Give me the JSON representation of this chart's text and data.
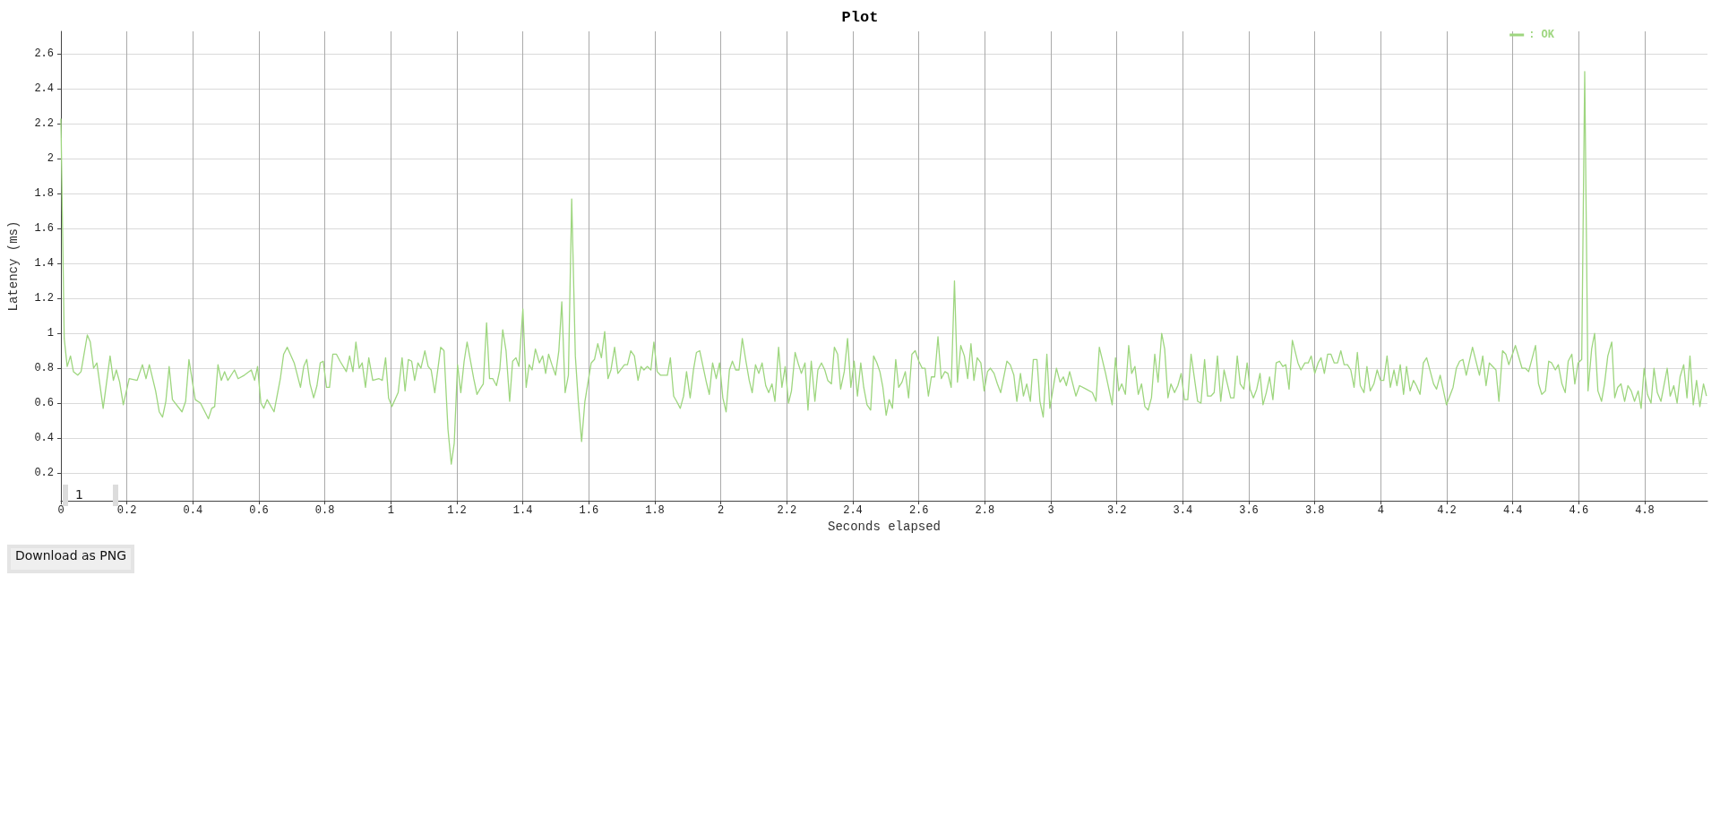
{
  "chart_data": {
    "type": "line",
    "title": "Plot",
    "xlabel": "Seconds elapsed",
    "ylabel": "Latency (ms)",
    "xlim": [
      0,
      4.99
    ],
    "ylim": [
      0.04,
      2.73
    ],
    "xticks": [
      0,
      0.2,
      0.4,
      0.6,
      0.8,
      1,
      1.2,
      1.4,
      1.6,
      1.8,
      2,
      2.2,
      2.4,
      2.6,
      2.8,
      3,
      3.2,
      3.4,
      3.6,
      3.8,
      4,
      4.2,
      4.4,
      4.6,
      4.8
    ],
    "yticks": [
      0.2,
      0.4,
      0.6,
      0.8,
      1,
      1.2,
      1.4,
      1.6,
      1.8,
      2,
      2.2,
      2.4,
      2.6
    ],
    "grid": true,
    "legend": "top right",
    "marker": "none",
    "line_style": "solid",
    "annotations": [
      "1",
      "Download as PNG"
    ],
    "series": [
      {
        "name": ": OK",
        "color": "#9ed67f",
        "x": [
          0,
          0.01,
          0.019,
          0.029,
          0.038,
          0.051,
          0.061,
          0.08,
          0.089,
          0.099,
          0.109,
          0.128,
          0.149,
          0.159,
          0.168,
          0.178,
          0.189,
          0.207,
          0.231,
          0.247,
          0.258,
          0.268,
          0.287,
          0.298,
          0.308,
          0.318,
          0.328,
          0.338,
          0.367,
          0.378,
          0.388,
          0.407,
          0.423,
          0.447,
          0.457,
          0.466,
          0.476,
          0.486,
          0.496,
          0.506,
          0.526,
          0.537,
          0.556,
          0.577,
          0.587,
          0.596,
          0.606,
          0.615,
          0.625,
          0.646,
          0.665,
          0.675,
          0.686,
          0.707,
          0.726,
          0.736,
          0.745,
          0.755,
          0.766,
          0.776,
          0.786,
          0.795,
          0.805,
          0.814,
          0.824,
          0.835,
          0.846,
          0.865,
          0.875,
          0.885,
          0.894,
          0.904,
          0.913,
          0.923,
          0.933,
          0.945,
          0.964,
          0.974,
          0.984,
          0.993,
          1.003,
          1.022,
          1.034,
          1.043,
          1.053,
          1.063,
          1.072,
          1.082,
          1.091,
          1.103,
          1.113,
          1.122,
          1.133,
          1.151,
          1.161,
          1.173,
          1.183,
          1.192,
          1.202,
          1.212,
          1.222,
          1.231,
          1.251,
          1.261,
          1.27,
          1.28,
          1.29,
          1.299,
          1.309,
          1.32,
          1.33,
          1.339,
          1.349,
          1.36,
          1.369,
          1.379,
          1.388,
          1.4,
          1.41,
          1.419,
          1.428,
          1.438,
          1.45,
          1.46,
          1.469,
          1.478,
          1.488,
          1.499,
          1.509,
          1.518,
          1.528,
          1.538,
          1.548,
          1.559,
          1.568,
          1.578,
          1.588,
          1.607,
          1.617,
          1.627,
          1.638,
          1.648,
          1.658,
          1.667,
          1.678,
          1.688,
          1.708,
          1.717,
          1.727,
          1.738,
          1.749,
          1.758,
          1.767,
          1.777,
          1.788,
          1.797,
          1.807,
          1.817,
          1.838,
          1.847,
          1.857,
          1.866,
          1.877,
          1.887,
          1.896,
          1.907,
          1.917,
          1.926,
          1.936,
          1.956,
          1.965,
          1.975,
          1.986,
          1.996,
          2.006,
          2.016,
          2.026,
          2.035,
          2.045,
          2.055,
          2.065,
          2.076,
          2.086,
          2.095,
          2.105,
          2.115,
          2.125,
          2.136,
          2.145,
          2.155,
          2.164,
          2.175,
          2.185,
          2.195,
          2.205,
          2.214,
          2.225,
          2.234,
          2.244,
          2.255,
          2.264,
          2.274,
          2.285,
          2.294,
          2.305,
          2.315,
          2.324,
          2.335,
          2.344,
          2.354,
          2.363,
          2.374,
          2.384,
          2.394,
          2.404,
          2.414,
          2.424,
          2.433,
          2.443,
          2.454,
          2.463,
          2.473,
          2.482,
          2.491,
          2.501,
          2.51,
          2.52,
          2.53,
          2.539,
          2.549,
          2.559,
          2.569,
          2.579,
          2.589,
          2.6,
          2.61,
          2.619,
          2.629,
          2.638,
          2.648,
          2.658,
          2.668,
          2.679,
          2.688,
          2.698,
          2.708,
          2.717,
          2.727,
          2.738,
          2.748,
          2.758,
          2.767,
          2.777,
          2.788,
          2.798,
          2.808,
          2.817,
          2.828,
          2.838,
          2.848,
          2.867,
          2.877,
          2.888,
          2.897,
          2.908,
          2.917,
          2.927,
          2.938,
          2.947,
          2.958,
          2.967,
          2.977,
          2.988,
          2.997,
          3.017,
          3.028,
          3.038,
          3.047,
          3.057,
          3.076,
          3.087,
          3.107,
          3.126,
          3.137,
          3.147,
          3.166,
          3.186,
          3.196,
          3.206,
          3.215,
          3.226,
          3.236,
          3.245,
          3.255,
          3.265,
          3.275,
          3.285,
          3.295,
          3.305,
          3.315,
          3.325,
          3.336,
          3.345,
          3.355,
          3.364,
          3.375,
          3.385,
          3.395,
          3.405,
          3.415,
          3.425,
          3.445,
          3.455,
          3.466,
          3.475,
          3.485,
          3.495,
          3.505,
          3.515,
          3.525,
          3.535,
          3.545,
          3.555,
          3.565,
          3.574,
          3.585,
          3.595,
          3.604,
          3.614,
          3.624,
          3.634,
          3.643,
          3.653,
          3.663,
          3.673,
          3.683,
          3.693,
          3.703,
          3.712,
          3.722,
          3.732,
          3.749,
          3.758,
          3.77,
          3.78,
          3.789,
          3.8,
          3.81,
          3.819,
          3.829,
          3.839,
          3.849,
          3.859,
          3.869,
          3.879,
          3.889,
          3.899,
          3.909,
          3.919,
          3.929,
          3.938,
          3.949,
          3.958,
          3.968,
          3.979,
          3.989,
          3.999,
          4.009,
          4.019,
          4.029,
          4.04,
          4.049,
          4.059,
          4.069,
          4.078,
          4.089,
          4.099,
          4.108,
          4.119,
          4.129,
          4.139,
          4.16,
          4.169,
          4.18,
          4.199,
          4.219,
          4.229,
          4.239,
          4.249,
          4.259,
          4.278,
          4.299,
          4.309,
          4.319,
          4.329,
          4.349,
          4.358,
          4.369,
          4.379,
          4.388,
          4.408,
          4.428,
          4.438,
          4.448,
          4.469,
          4.478,
          4.488,
          4.499,
          4.509,
          4.518,
          4.529,
          4.538,
          4.549,
          4.559,
          4.568,
          4.579,
          4.588,
          4.598,
          4.609,
          4.618,
          4.628,
          4.639,
          4.648,
          4.658,
          4.669,
          4.678,
          4.688,
          4.7,
          4.709,
          4.718,
          4.728,
          4.739,
          4.749,
          4.759,
          4.769,
          4.78,
          4.789,
          4.798,
          4.808,
          4.819,
          4.828,
          4.838,
          4.849,
          4.868,
          4.877,
          4.888,
          4.898,
          4.907,
          4.918,
          4.928,
          4.937,
          4.947,
          4.957,
          4.967,
          4.978,
          4.987
        ],
        "values": [
          2.23,
          0.97,
          0.81,
          0.87,
          0.78,
          0.76,
          0.78,
          0.99,
          0.95,
          0.8,
          0.83,
          0.57,
          0.87,
          0.73,
          0.79,
          0.72,
          0.59,
          0.74,
          0.73,
          0.82,
          0.74,
          0.82,
          0.67,
          0.55,
          0.52,
          0.61,
          0.81,
          0.62,
          0.55,
          0.61,
          0.85,
          0.62,
          0.6,
          0.51,
          0.57,
          0.58,
          0.82,
          0.73,
          0.78,
          0.73,
          0.79,
          0.74,
          0.76,
          0.79,
          0.73,
          0.81,
          0.6,
          0.57,
          0.62,
          0.55,
          0.74,
          0.88,
          0.92,
          0.83,
          0.69,
          0.81,
          0.85,
          0.71,
          0.63,
          0.7,
          0.83,
          0.84,
          0.69,
          0.69,
          0.88,
          0.88,
          0.84,
          0.78,
          0.87,
          0.78,
          0.95,
          0.8,
          0.83,
          0.69,
          0.86,
          0.73,
          0.74,
          0.73,
          0.86,
          0.63,
          0.58,
          0.66,
          0.86,
          0.67,
          0.85,
          0.84,
          0.73,
          0.83,
          0.8,
          0.9,
          0.81,
          0.79,
          0.66,
          0.92,
          0.9,
          0.45,
          0.25,
          0.37,
          0.82,
          0.66,
          0.84,
          0.95,
          0.74,
          0.65,
          0.68,
          0.71,
          1.06,
          0.74,
          0.74,
          0.7,
          0.79,
          1.02,
          0.9,
          0.61,
          0.84,
          0.86,
          0.81,
          1.14,
          0.69,
          0.82,
          0.79,
          0.91,
          0.83,
          0.87,
          0.77,
          0.88,
          0.82,
          0.76,
          0.9,
          1.18,
          0.66,
          0.76,
          1.77,
          0.87,
          0.61,
          0.38,
          0.61,
          0.83,
          0.85,
          0.94,
          0.86,
          1.01,
          0.74,
          0.79,
          0.92,
          0.77,
          0.82,
          0.82,
          0.9,
          0.87,
          0.73,
          0.81,
          0.79,
          0.81,
          0.79,
          0.95,
          0.78,
          0.76,
          0.76,
          0.86,
          0.64,
          0.61,
          0.57,
          0.64,
          0.78,
          0.63,
          0.79,
          0.89,
          0.9,
          0.72,
          0.65,
          0.83,
          0.74,
          0.83,
          0.63,
          0.55,
          0.79,
          0.84,
          0.79,
          0.79,
          0.97,
          0.84,
          0.73,
          0.66,
          0.82,
          0.77,
          0.83,
          0.7,
          0.66,
          0.71,
          0.61,
          0.92,
          0.69,
          0.81,
          0.6,
          0.67,
          0.89,
          0.83,
          0.77,
          0.83,
          0.56,
          0.84,
          0.61,
          0.79,
          0.83,
          0.79,
          0.73,
          0.71,
          0.92,
          0.88,
          0.68,
          0.78,
          0.97,
          0.69,
          0.84,
          0.64,
          0.83,
          0.69,
          0.59,
          0.56,
          0.87,
          0.83,
          0.78,
          0.69,
          0.53,
          0.62,
          0.57,
          0.85,
          0.69,
          0.72,
          0.78,
          0.63,
          0.88,
          0.9,
          0.84,
          0.8,
          0.8,
          0.64,
          0.75,
          0.75,
          0.98,
          0.74,
          0.78,
          0.77,
          0.69,
          1.3,
          0.72,
          0.93,
          0.87,
          0.74,
          0.94,
          0.73,
          0.86,
          0.83,
          0.67,
          0.78,
          0.8,
          0.77,
          0.71,
          0.66,
          0.84,
          0.82,
          0.76,
          0.61,
          0.77,
          0.64,
          0.71,
          0.61,
          0.85,
          0.85,
          0.61,
          0.52,
          0.88,
          0.57,
          0.8,
          0.72,
          0.75,
          0.7,
          0.78,
          0.64,
          0.7,
          0.68,
          0.66,
          0.61,
          0.92,
          0.77,
          0.59,
          0.86,
          0.67,
          0.71,
          0.65,
          0.93,
          0.77,
          0.81,
          0.65,
          0.71,
          0.58,
          0.56,
          0.63,
          0.88,
          0.72,
          1.0,
          0.91,
          0.63,
          0.71,
          0.66,
          0.7,
          0.77,
          0.62,
          0.62,
          0.88,
          0.61,
          0.6,
          0.85,
          0.64,
          0.64,
          0.66,
          0.87,
          0.61,
          0.79,
          0.71,
          0.63,
          0.63,
          0.87,
          0.71,
          0.68,
          0.83,
          0.68,
          0.63,
          0.68,
          0.77,
          0.59,
          0.66,
          0.75,
          0.62,
          0.83,
          0.84,
          0.81,
          0.82,
          0.68,
          0.96,
          0.83,
          0.79,
          0.83,
          0.83,
          0.87,
          0.77,
          0.83,
          0.86,
          0.77,
          0.88,
          0.88,
          0.83,
          0.83,
          0.9,
          0.82,
          0.82,
          0.79,
          0.69,
          0.89,
          0.7,
          0.66,
          0.81,
          0.67,
          0.71,
          0.79,
          0.73,
          0.73,
          0.87,
          0.69,
          0.79,
          0.7,
          0.82,
          0.65,
          0.81,
          0.67,
          0.73,
          0.7,
          0.65,
          0.83,
          0.86,
          0.71,
          0.68,
          0.76,
          0.59,
          0.69,
          0.8,
          0.84,
          0.85,
          0.76,
          0.92,
          0.76,
          0.87,
          0.7,
          0.83,
          0.79,
          0.61,
          0.9,
          0.88,
          0.82,
          0.93,
          0.8,
          0.8,
          0.78,
          0.93,
          0.71,
          0.65,
          0.67,
          0.84,
          0.83,
          0.79,
          0.82,
          0.71,
          0.66,
          0.84,
          0.88,
          0.71,
          0.83,
          0.85,
          2.5,
          0.67,
          0.91,
          1.0,
          0.67,
          0.61,
          0.71,
          0.87,
          0.95,
          0.63,
          0.69,
          0.71,
          0.61,
          0.7,
          0.67,
          0.61,
          0.67,
          0.57,
          0.8,
          0.65,
          0.6,
          0.8,
          0.66,
          0.61,
          0.8,
          0.64,
          0.7,
          0.6,
          0.75,
          0.82,
          0.63,
          0.87,
          0.59,
          0.73,
          0.58,
          0.71,
          0.64
        ]
      }
    ]
  }
}
